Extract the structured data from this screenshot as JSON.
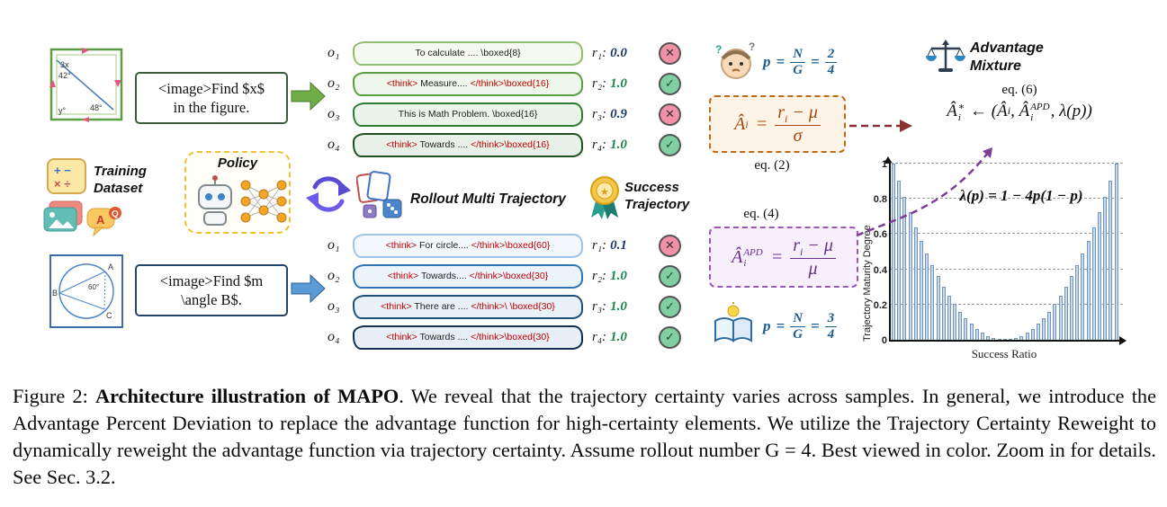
{
  "geometry1": {
    "a1": "3x",
    "a2": "42°",
    "a3": "48°",
    "a4": "y°"
  },
  "geometry2": {
    "A": "A",
    "B": "B",
    "C": "C",
    "angle": "60°"
  },
  "prompt1": {
    "line1": "<image>Find $x$",
    "line2": "in the figure."
  },
  "prompt2": {
    "line1": "<image>Find $m",
    "line2": "\\angle B$."
  },
  "labels": {
    "training1": "Training",
    "training2": "Dataset",
    "policy": "Policy",
    "rollout": "Rollout Multi Trajectory",
    "success1": "Success",
    "success2": "Trajectory",
    "mixture1": "Advantage",
    "mixture2": "Mixture"
  },
  "icons": {
    "calc_row1": "+ −",
    "calc_row2": "× ÷",
    "chat_q": "Q",
    "chat_a": "A"
  },
  "top_group": {
    "items": [
      {
        "label": "o₁",
        "think_open": "",
        "body": "To calculate .... ",
        "think_close": "",
        "boxed": "\\boxed{8}",
        "r_label": "r₁:",
        "r_value": "0.0",
        "mark": "✕"
      },
      {
        "label": "o₂",
        "think_open": "<think>",
        "body": " Measure.... ",
        "think_close": "</think>",
        "boxed": "\\boxed{16}",
        "r_label": "r₂:",
        "r_value": "1.0",
        "mark": "✓"
      },
      {
        "label": "o₃",
        "think_open": "",
        "body": "This is Math Problem. ",
        "think_close": "",
        "boxed": "\\boxed{16}",
        "r_label": "r₃:",
        "r_value": "0.9",
        "mark": "✕"
      },
      {
        "label": "o₄",
        "think_open": "<think>",
        "body": " Towards .... ",
        "think_close": "</think>",
        "boxed": "\\boxed{16}",
        "r_label": "r₄:",
        "r_value": "1.0",
        "mark": "✓"
      }
    ]
  },
  "bottom_group": {
    "items": [
      {
        "label": "o₁",
        "think_open": "<think>",
        "body": " For circle.... ",
        "think_close": "</think>",
        "boxed": "\\boxed{60}",
        "r_label": "r₁:",
        "r_value": "0.1",
        "mark": "✕"
      },
      {
        "label": "o₂",
        "think_open": "<think>",
        "body": " Towards.... ",
        "think_close": "</think>",
        "boxed": "\\boxed{30}",
        "r_label": "r₂:",
        "r_value": "1.0",
        "mark": "✓"
      },
      {
        "label": "o₃",
        "think_open": "<think>",
        "body": " There are .... ",
        "think_close": "</think>\\",
        "boxed": " \\boxed{30}",
        "r_label": "r₃:",
        "r_value": "1.0",
        "mark": "✓"
      },
      {
        "label": "o₄",
        "think_open": "<think>",
        "body": " Towards .... ",
        "think_close": "</think>",
        "boxed": "\\boxed{30}",
        "r_label": "r₄:",
        "r_value": "1.0",
        "mark": "✓"
      }
    ]
  },
  "p_top": {
    "lhs": "p",
    "eq1": "=",
    "num1": "N",
    "den1": "G",
    "eq2": "=",
    "num2": "2",
    "den2": "4"
  },
  "p_bottom": {
    "lhs": "p",
    "eq1": "=",
    "num1": "N",
    "den1": "G",
    "eq2": "=",
    "num2": "3",
    "den2": "4"
  },
  "eq2": {
    "label": "eq. (2)",
    "base": "Â",
    "sub": "i",
    "equals": "=",
    "num_r": "r",
    "num_sub": "i",
    "num_rest": " − μ",
    "den": "σ"
  },
  "eq4": {
    "label": "eq. (4)",
    "base": "Â",
    "sup": "APD",
    "sub": "i",
    "equals": "=",
    "num_r": "r",
    "num_sub": "i",
    "num_rest": " − μ",
    "den": "μ"
  },
  "eq6": {
    "label": "eq. (6)",
    "base1": "Â",
    "sup1": "∗",
    "sub1": "i",
    "arrow": " ← (",
    "base2": "Â",
    "sub2": "i",
    "comma": ", ",
    "base3": "Â",
    "sup3": "APD",
    "sub3": "i",
    "tail": ", λ(p))"
  },
  "chart_data": {
    "type": "bar",
    "formula": "λ(p) = 1 − 4p(1 − p)",
    "xlabel": "Success Ratio",
    "ylabel": "Trajectory Maturity Degree",
    "xlim": [
      0,
      1
    ],
    "ylim": [
      0,
      1
    ],
    "yticks": [
      "0",
      "0.2",
      "0.4",
      "0.6",
      "0.8",
      "1"
    ],
    "grid": true,
    "x": [
      0,
      0.025,
      0.05,
      0.075,
      0.1,
      0.125,
      0.15,
      0.175,
      0.2,
      0.225,
      0.25,
      0.275,
      0.3,
      0.325,
      0.35,
      0.375,
      0.4,
      0.425,
      0.45,
      0.475,
      0.5,
      0.525,
      0.55,
      0.575,
      0.6,
      0.625,
      0.65,
      0.675,
      0.7,
      0.725,
      0.75,
      0.775,
      0.8,
      0.825,
      0.85,
      0.875,
      0.9,
      0.925,
      0.95,
      0.975,
      1
    ],
    "values": [
      1,
      0.9025,
      0.81,
      0.7225,
      0.64,
      0.5625,
      0.49,
      0.4225,
      0.36,
      0.3025,
      0.25,
      0.2025,
      0.16,
      0.1225,
      0.09,
      0.0625,
      0.04,
      0.0225,
      0.01,
      0.0025,
      0,
      0.0025,
      0.01,
      0.0225,
      0.04,
      0.0625,
      0.09,
      0.1225,
      0.16,
      0.2025,
      0.25,
      0.3025,
      0.36,
      0.4225,
      0.49,
      0.5625,
      0.64,
      0.7225,
      0.81,
      0.9025,
      1
    ]
  },
  "caption": {
    "prefix": "Figure 2: ",
    "bold": "Architecture illustration of MAPO",
    "body": ". We reveal that the trajectory certainty varies across samples. In general, we introduce the Advantage Percent Deviation to replace the advantage function for high-certainty elements. We utilize the Trajectory Certainty Reweight to dynamically reweight the advantage function via trajectory certainty. Assume rollout number G = 4. Best viewed in color. Zoom in for details. See Sec. 3.2."
  }
}
